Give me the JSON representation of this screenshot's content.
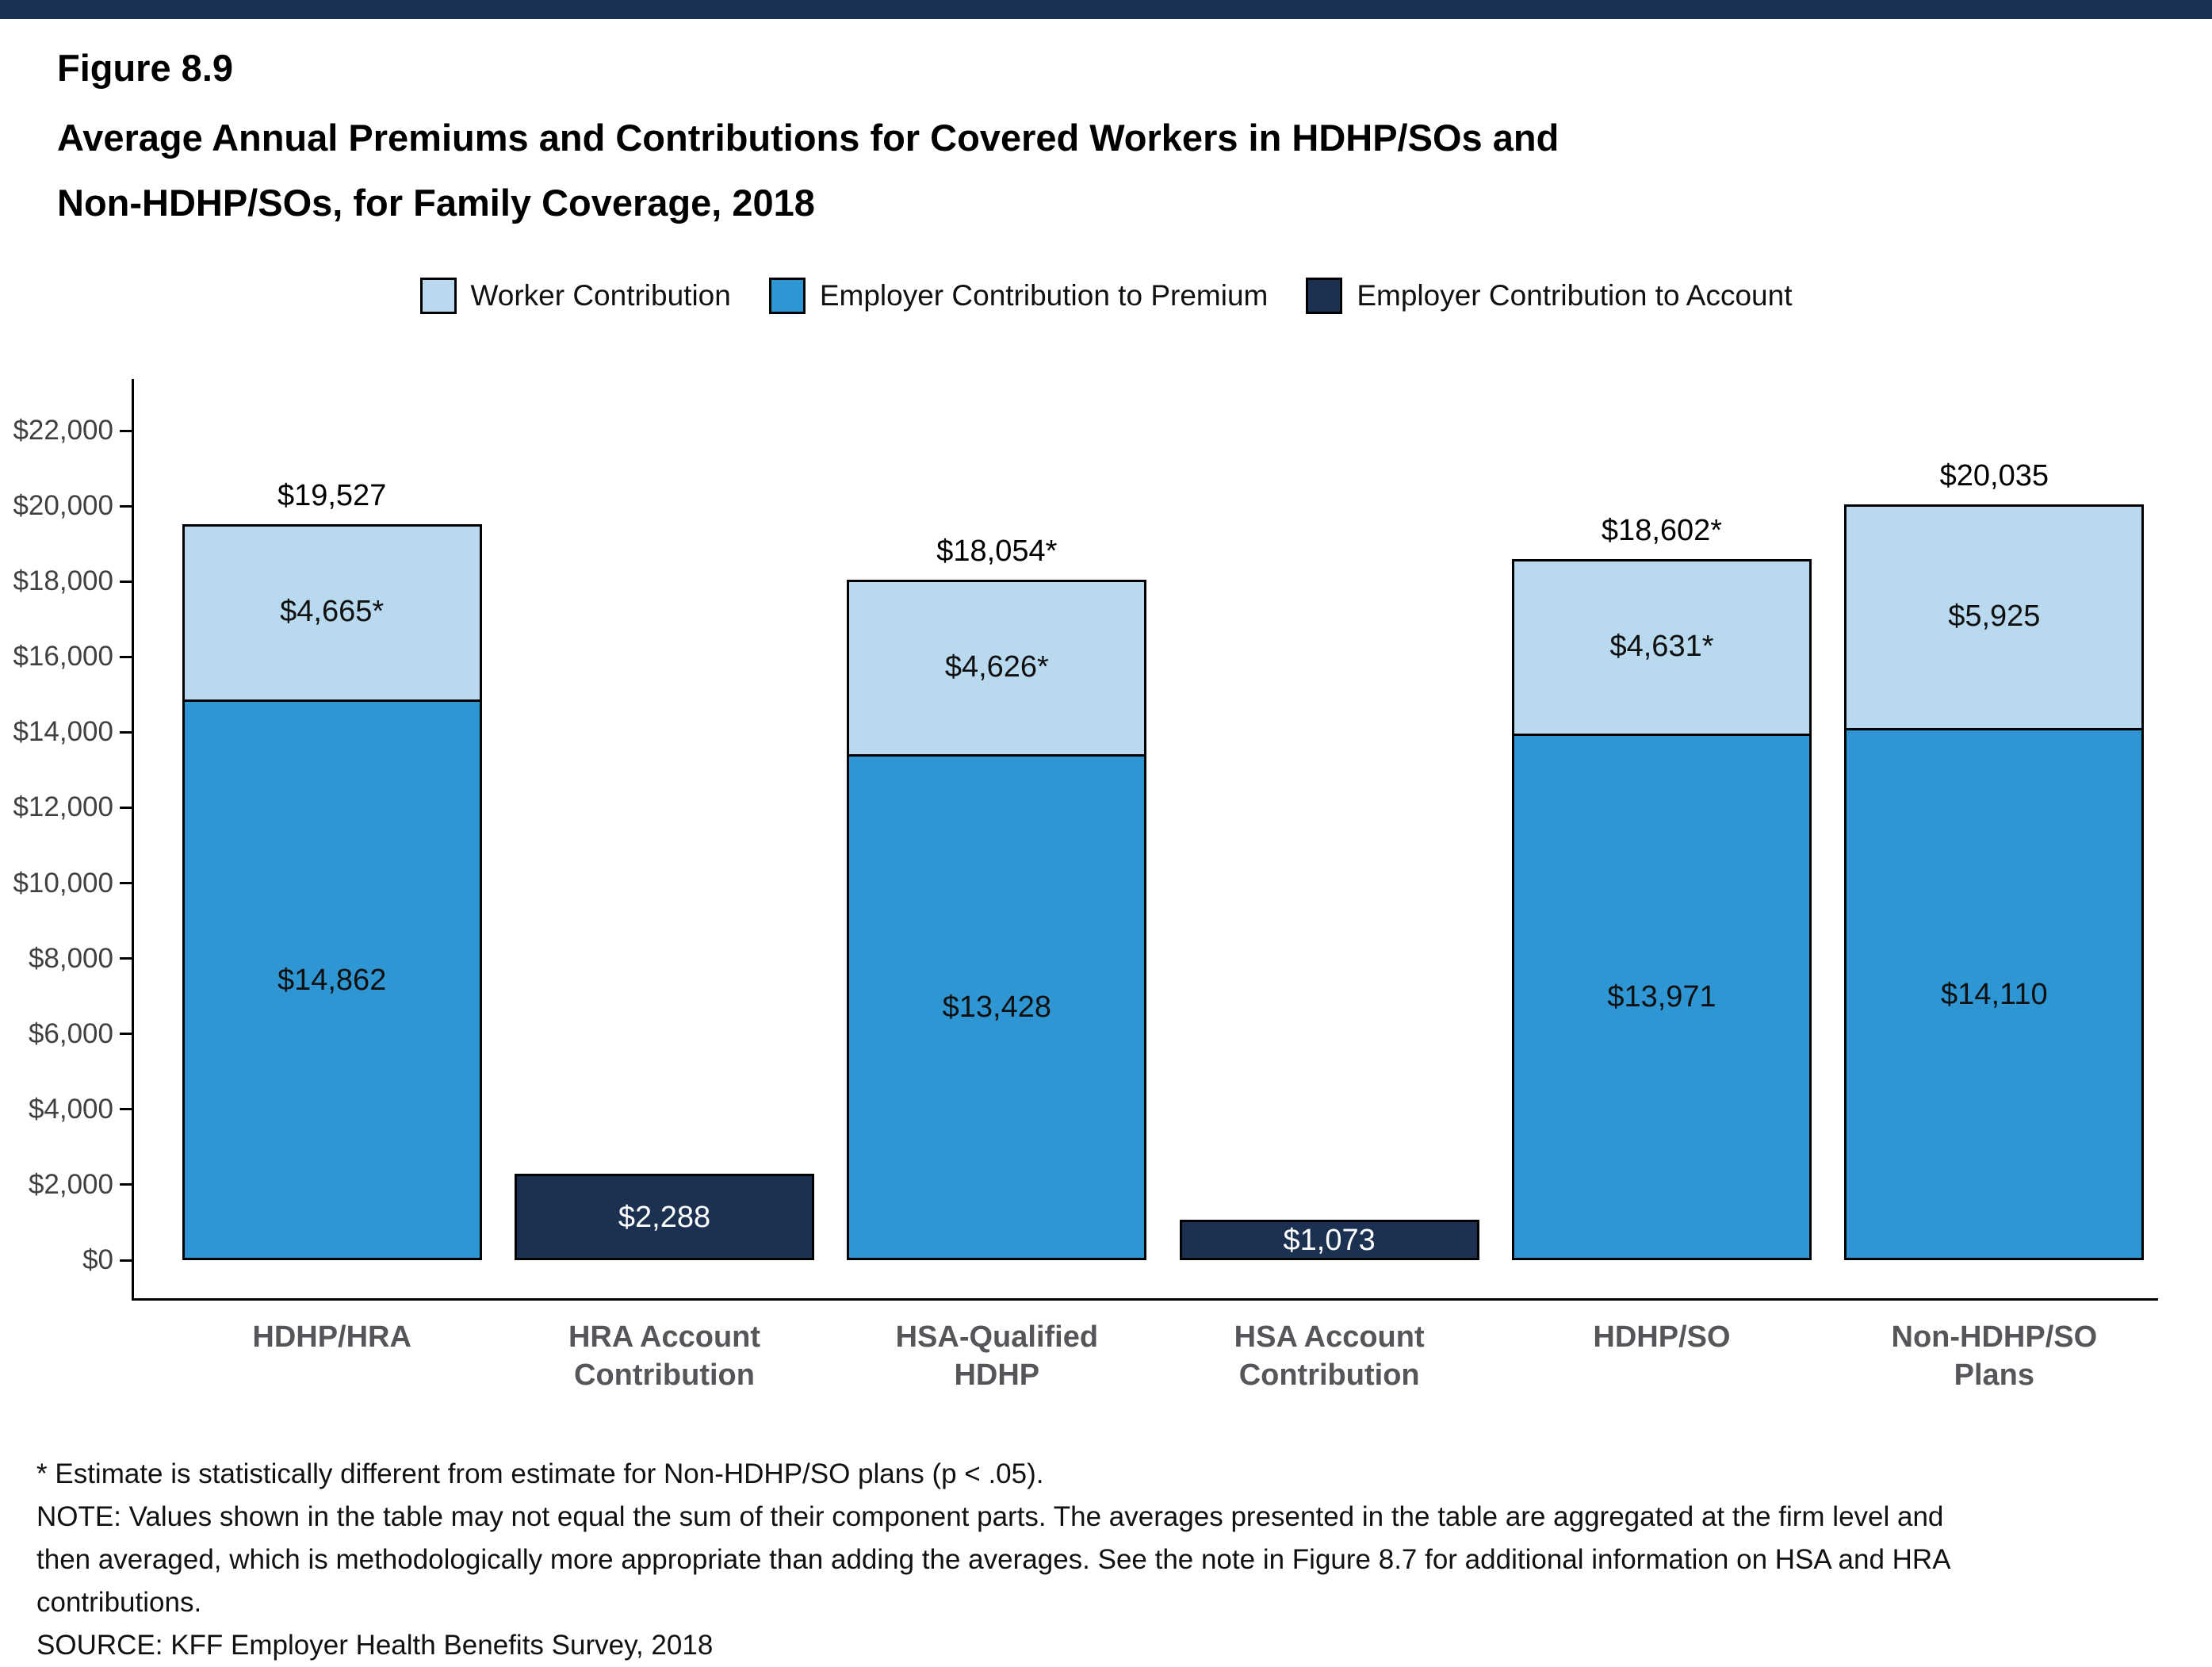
{
  "page": {
    "figure_label": "Figure 8.9",
    "title_line1": "Average Annual Premiums and Contributions for Covered Workers in HDHP/SOs and",
    "title_line2": "Non-HDHP/SOs, for Family Coverage, 2018"
  },
  "colors": {
    "header_bar": "#1b3156",
    "worker_contribution": "#b9d9ee",
    "employer_premium": "#2e96d3",
    "employer_account": "#1c3151"
  },
  "legend": [
    {
      "label": "Worker Contribution",
      "color": "#b9d9ee"
    },
    {
      "label": "Employer Contribution to Premium",
      "color": "#2e96d3"
    },
    {
      "label": "Employer Contribution to Account",
      "color": "#1c3151"
    }
  ],
  "chart_data": {
    "type": "bar",
    "stacked": true,
    "title": "Average Annual Premiums and Contributions for Covered Workers in HDHP/SOs and Non-HDHP/SOs, for Family Coverage, 2018",
    "xlabel": "",
    "ylabel": "",
    "ylim": [
      0,
      22000
    ],
    "ytick_step": 2000,
    "ytick_labels": [
      "$0",
      "$2,000",
      "$4,000",
      "$6,000",
      "$8,000",
      "$10,000",
      "$12,000",
      "$14,000",
      "$16,000",
      "$18,000",
      "$20,000",
      "$22,000"
    ],
    "grid": false,
    "legend_position": "top",
    "categories": [
      "HDHP/HRA",
      "HRA Account\nContribution",
      "HSA-Qualified\nHDHP",
      "HSA Account\nContribution",
      "HDHP/SO",
      "Non-HDHP/SO\nPlans"
    ],
    "series": [
      {
        "name": "Employer Contribution to Premium",
        "color": "#2e96d3",
        "label_color": "#101010",
        "values": [
          14862,
          null,
          13428,
          null,
          13971,
          14110
        ],
        "labels": [
          "$14,862",
          "",
          "$13,428",
          "",
          "$13,971",
          "$14,110"
        ]
      },
      {
        "name": "Worker Contribution",
        "color": "#b9d9ee",
        "label_color": "#101010",
        "values": [
          4665,
          null,
          4626,
          null,
          4631,
          5925
        ],
        "labels": [
          "$4,665*",
          "",
          "$4,626*",
          "",
          "$4,631*",
          "$5,925"
        ]
      },
      {
        "name": "Employer Contribution to Account",
        "color": "#1c3151",
        "label_color": "#ffffff",
        "values": [
          null,
          2288,
          null,
          1073,
          null,
          null
        ],
        "labels": [
          "",
          "$2,288",
          "",
          "$1,073",
          "",
          ""
        ]
      }
    ],
    "totals": [
      "$19,527",
      null,
      "$18,054*",
      null,
      "$18,602*",
      "$20,035"
    ]
  },
  "footnotes": {
    "star_note": "* Estimate is statistically different from estimate for Non-HDHP/SO plans (p < .05).",
    "note": "NOTE: Values shown in the table may not equal the sum of their component parts. The averages presented in the table are aggregated at the firm level and then averaged, which is methodologically more appropriate than adding the averages. See the note in Figure 8.7 for additional information on HSA and HRA contributions.",
    "source": "SOURCE: KFF Employer Health Benefits Survey, 2018"
  }
}
